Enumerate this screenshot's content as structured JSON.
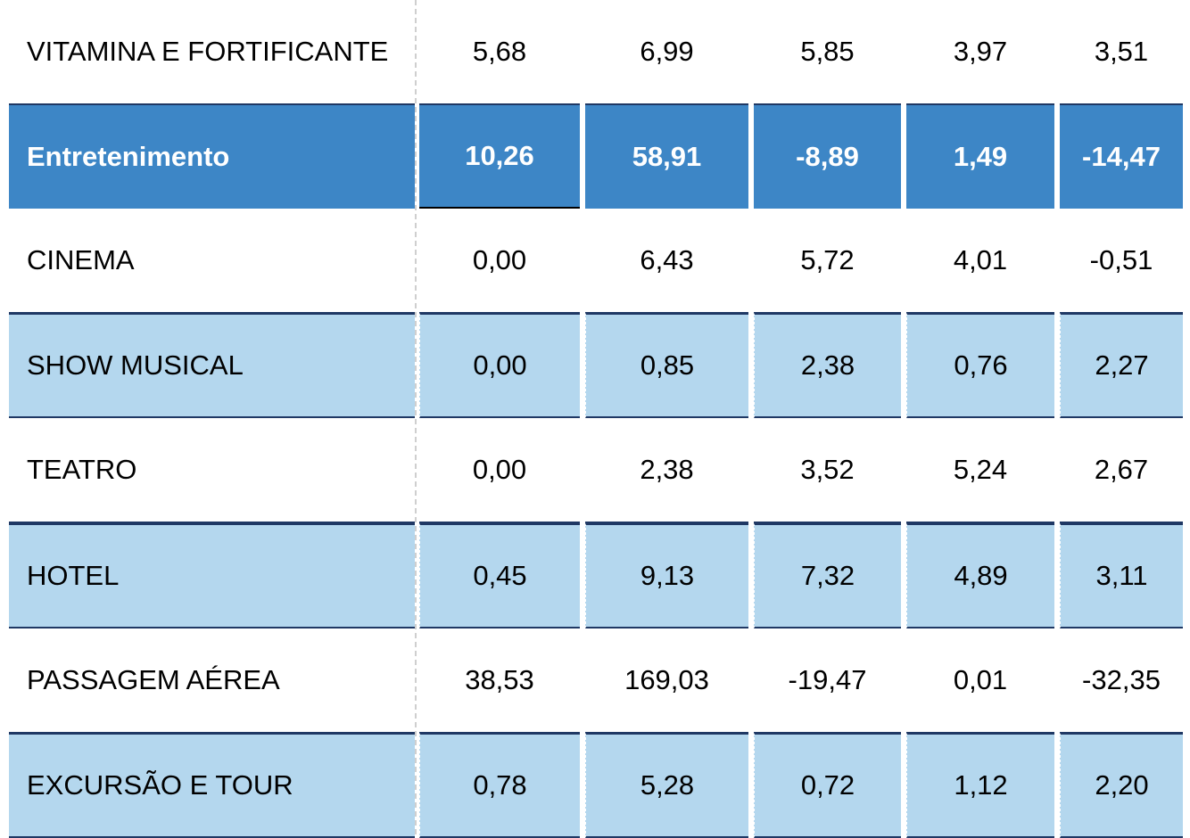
{
  "table": {
    "rows": [
      {
        "label": "VITAMINA E FORTIFICANTE",
        "values": [
          "5,68",
          "6,99",
          "5,85",
          "3,97",
          "3,51"
        ],
        "style": "plain"
      },
      {
        "label": "Entretenimento",
        "values": [
          "10,26",
          "58,91",
          "-8,89",
          "1,49",
          "-14,47"
        ],
        "style": "highlight"
      },
      {
        "label": "CINEMA",
        "values": [
          "0,00",
          "6,43",
          "5,72",
          "4,01",
          "-0,51"
        ],
        "style": "plain"
      },
      {
        "label": "SHOW MUSICAL",
        "values": [
          "0,00",
          "0,85",
          "2,38",
          "0,76",
          "2,27"
        ],
        "style": "light"
      },
      {
        "label": "TEATRO",
        "values": [
          "0,00",
          "2,38",
          "3,52",
          "5,24",
          "2,67"
        ],
        "style": "plain"
      },
      {
        "label": "HOTEL",
        "values": [
          "0,45",
          "9,13",
          "7,32",
          "4,89",
          "3,11"
        ],
        "style": "light"
      },
      {
        "label": "PASSAGEM AÉREA",
        "values": [
          "38,53",
          "169,03",
          "-19,47",
          "0,01",
          "-32,35"
        ],
        "style": "plain"
      },
      {
        "label": "EXCURSÃO E TOUR",
        "values": [
          "0,78",
          "5,28",
          "0,72",
          "1,12",
          "2,20"
        ],
        "style": "light"
      }
    ]
  },
  "colors": {
    "highlight_bg": "#3d86c6",
    "light_bg": "#b4d7ee",
    "rule": "#1f3864"
  }
}
